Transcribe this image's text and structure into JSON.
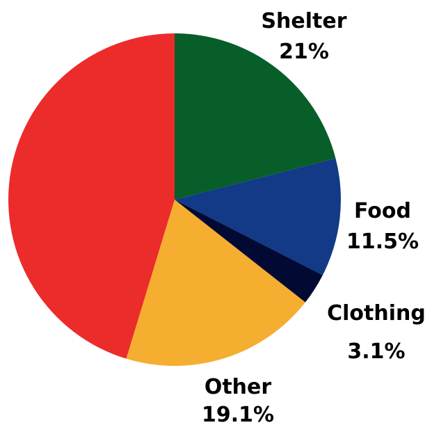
{
  "chart_data": {
    "type": "pie",
    "title": "",
    "slices": [
      {
        "name": "Shelter",
        "value": 21,
        "value_label": "21%",
        "color": "#075E28"
      },
      {
        "name": "Food",
        "value": 11.5,
        "value_label": "11.5%",
        "color": "#123A87"
      },
      {
        "name": "Clothing",
        "value": 3.1,
        "value_label": "3.1%",
        "color": "#020A33"
      },
      {
        "name": "Other",
        "value": 19.1,
        "value_label": "19.1%",
        "color": "#F5AE30"
      },
      {
        "name": "",
        "value": 45.3,
        "value_label": "",
        "color": "#EC2B2B"
      }
    ],
    "start": "top",
    "direction": "clockwise"
  }
}
